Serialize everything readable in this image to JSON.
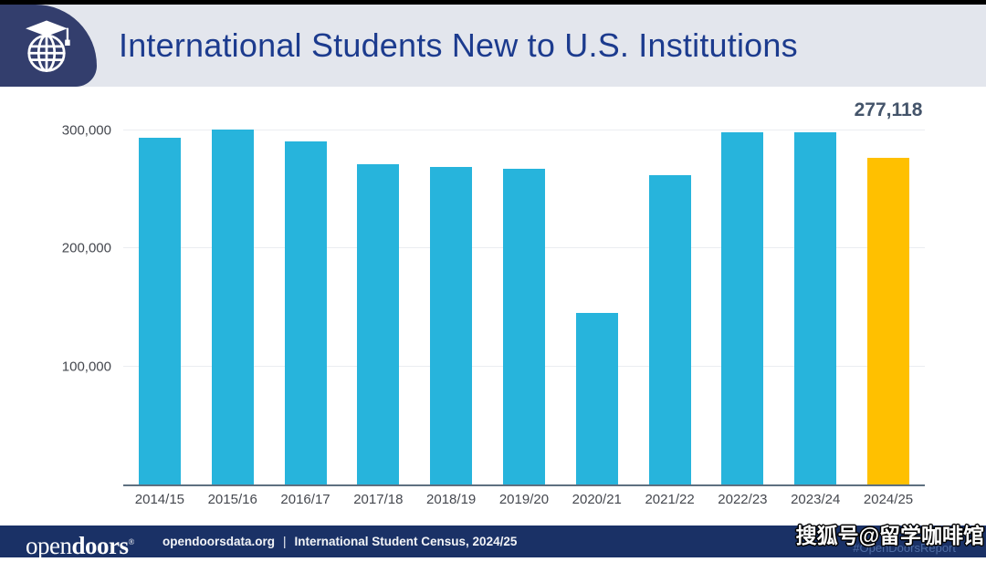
{
  "header": {
    "title": "International Students New to U.S. Institutions"
  },
  "colors": {
    "bar": "#27b4dc",
    "highlight_bar": "#ffc000",
    "title_text": "#1c3b8e",
    "header_bg": "#e3e6ed",
    "badge_navy": "#333e6d",
    "footer_navy": "#1a3166",
    "value_label": "#44546a"
  },
  "chart_data": {
    "type": "bar",
    "title": "International Students New to U.S. Institutions",
    "categories": [
      "2014/15",
      "2015/16",
      "2016/17",
      "2017/18",
      "2018/19",
      "2019/20",
      "2020/21",
      "2021/22",
      "2022/23",
      "2023/24",
      "2024/25"
    ],
    "values": [
      293766,
      300743,
      290836,
      271738,
      269383,
      267712,
      145528,
      261961,
      298523,
      298705,
      277118
    ],
    "highlight_category": "2024/25",
    "highlight_value_label": "277,118",
    "xlabel": "",
    "ylabel": "",
    "y_ticks": [
      "300,000",
      "200,000",
      "100,000"
    ],
    "y_tick_values": [
      300000,
      200000,
      100000
    ],
    "ylim": [
      0,
      310000
    ],
    "grid": "horizontal",
    "legend_position": "none"
  },
  "footer": {
    "logo_open": "open",
    "logo_doors": "doors",
    "logo_reg": "®",
    "site": "opendoorsdata.org",
    "separator": "|",
    "census": "International Student Census, 2024/25",
    "hashtag": "#OpenDoorsReport",
    "watermark": "搜狐号@留学咖啡馆"
  }
}
